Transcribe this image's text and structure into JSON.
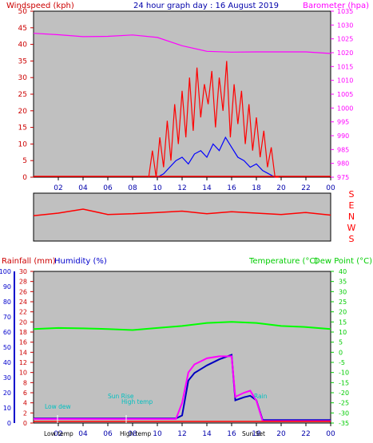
{
  "header": {
    "left_label": "Windspeed (kph)",
    "title": "24 hour graph day : 16 August 2019",
    "right_label": "Barometer (hpa)"
  },
  "bottom_header": {
    "rainfall_label": "Rainfall (mm)",
    "humidity_label": "Humidity (%)",
    "temp_label": "Temperature (°C)",
    "dew_label": "Dew Point (°C)"
  },
  "direction_labels": [
    "S",
    "E",
    "N",
    "W",
    "S"
  ],
  "colors": {
    "wind": "#ff0000",
    "gust_avg": "#0000ff",
    "barometer": "#ff00ff",
    "direction": "#ff0000",
    "temperature": "#00ff00",
    "humidity": "#0000c0",
    "dewpoint": "#ff00ff",
    "rain": "#ff0000",
    "annotation": "#00c0c0",
    "plot_bg": "#c0c0c0"
  },
  "annotations": {
    "low_dew": "Low dew",
    "low_temp": "Low temp",
    "high_temp": "High temp",
    "sun_rise": "Sun Rise",
    "sunset": "Sun Set",
    "rain_mark": "Rain"
  },
  "chart_data": [
    {
      "type": "line",
      "title": "24 hour graph day : 16 August 2019",
      "xlabel": "",
      "ylabel": "Windspeed (kph)",
      "y2label": "Barometer (hpa)",
      "x_ticks": [
        "02",
        "04",
        "06",
        "08",
        "10",
        "12",
        "14",
        "16",
        "18",
        "20",
        "22",
        "00"
      ],
      "ylim": [
        0,
        50
      ],
      "y_ticks": [
        0,
        5,
        10,
        15,
        20,
        25,
        30,
        35,
        40,
        45,
        50
      ],
      "y2lim": [
        975,
        1035
      ],
      "y2_ticks": [
        975,
        980,
        985,
        990,
        995,
        1000,
        1005,
        1010,
        1015,
        1020,
        1025,
        1030,
        1035
      ],
      "series": [
        {
          "name": "Barometer (hpa)",
          "axis": "right",
          "x": [
            0,
            2,
            4,
            6,
            8,
            10,
            12,
            14,
            16,
            18,
            20,
            22,
            24
          ],
          "values": [
            1027,
            1026.5,
            1025.8,
            1025.9,
            1026.4,
            1025.5,
            1022.5,
            1020.5,
            1020.2,
            1020.3,
            1020.3,
            1020.3,
            1019.7
          ]
        },
        {
          "name": "Wind gust",
          "axis": "left",
          "x": [
            9.3,
            9.6,
            9.9,
            10.2,
            10.5,
            10.8,
            11.1,
            11.4,
            11.7,
            12.0,
            12.3,
            12.6,
            12.9,
            13.2,
            13.5,
            13.8,
            14.1,
            14.4,
            14.7,
            15.0,
            15.3,
            15.6,
            15.9,
            16.2,
            16.5,
            16.8,
            17.1,
            17.4,
            17.7,
            18.0,
            18.3,
            18.6,
            18.9,
            19.2,
            19.5,
            19.8
          ],
          "values": [
            0,
            8,
            0,
            12,
            3,
            17,
            5,
            22,
            10,
            26,
            12,
            30,
            14,
            33,
            18,
            28,
            22,
            32,
            15,
            30,
            20,
            35,
            12,
            28,
            16,
            26,
            10,
            22,
            8,
            18,
            6,
            14,
            3,
            9,
            0,
            0
          ]
        },
        {
          "name": "Wind average",
          "axis": "left",
          "x": [
            10,
            10.5,
            11,
            11.5,
            12,
            12.5,
            13,
            13.5,
            14,
            14.5,
            15,
            15.5,
            16,
            16.5,
            17,
            17.5,
            18,
            18.5,
            19,
            19.5
          ],
          "values": [
            0,
            1,
            3,
            5,
            6,
            4,
            7,
            8,
            6,
            10,
            8,
            12,
            9,
            6,
            5,
            3,
            4,
            2,
            1,
            0
          ]
        }
      ]
    },
    {
      "type": "line",
      "title": "",
      "ylabel": "Wind direction",
      "y_ticks": [
        "S",
        "E",
        "N",
        "W",
        "S"
      ],
      "series": [
        {
          "name": "Direction",
          "x": [
            0,
            2,
            4,
            6,
            8,
            10,
            12,
            14,
            16,
            18,
            20,
            22,
            24
          ],
          "values": [
            190,
            210,
            240,
            200,
            205,
            215,
            225,
            205,
            220,
            210,
            200,
            215,
            195
          ]
        }
      ]
    },
    {
      "type": "line",
      "title": "",
      "ylabel": "Rainfall (mm)  Humidity (%)",
      "y2label": "Temperature (°C) Dew Point (°C)",
      "x_ticks": [
        "02",
        "04",
        "06",
        "08",
        "10",
        "12",
        "14",
        "16",
        "18",
        "20",
        "22",
        "00"
      ],
      "ylim": [
        0,
        100
      ],
      "y_ticks": [
        0,
        10,
        20,
        30,
        40,
        50,
        60,
        70,
        80,
        90,
        100
      ],
      "rain_ticks": [
        0,
        2,
        4,
        6,
        8,
        10,
        12,
        14,
        16,
        18,
        20,
        22,
        24,
        26,
        28,
        30
      ],
      "y2lim": [
        -35,
        40
      ],
      "y2_ticks": [
        -35,
        -30,
        -25,
        -20,
        -15,
        -10,
        -5,
        0,
        5,
        10,
        15,
        20,
        25,
        30,
        35,
        40
      ],
      "series": [
        {
          "name": "Temperature (°C)",
          "axis": "right",
          "x": [
            0,
            2,
            4,
            6,
            8,
            10,
            12,
            14,
            16,
            18,
            20,
            22,
            24
          ],
          "values": [
            11.5,
            12,
            11.8,
            11.5,
            11,
            12,
            13,
            14.5,
            15,
            14.5,
            13,
            12.5,
            11.5
          ]
        },
        {
          "name": "Humidity (%)",
          "axis": "left",
          "x": [
            0,
            2,
            4,
            6,
            8,
            10,
            11.5,
            12,
            12.5,
            13,
            14,
            15,
            16,
            16.3,
            17,
            17.5,
            18,
            18.5,
            19,
            20,
            22,
            24
          ],
          "values": [
            3,
            3,
            3,
            3,
            3,
            3,
            3,
            5,
            28,
            33,
            38,
            42,
            45,
            15,
            17,
            18,
            15,
            2,
            2,
            2,
            2,
            2
          ]
        },
        {
          "name": "Dew Point (°C)",
          "axis": "right",
          "x": [
            0,
            2,
            4,
            6,
            8,
            10,
            11.5,
            12,
            12.5,
            13,
            14,
            15,
            16,
            16.3,
            17,
            17.5,
            18,
            18.5,
            19,
            20,
            22,
            24
          ],
          "values": [
            -33,
            -33,
            -33,
            -33,
            -33,
            -33,
            -33,
            -25,
            -10,
            -6,
            -3,
            -2,
            -2,
            -22,
            -20,
            -19,
            -24,
            -34,
            -34,
            -34,
            -34,
            -34
          ]
        }
      ]
    }
  ]
}
